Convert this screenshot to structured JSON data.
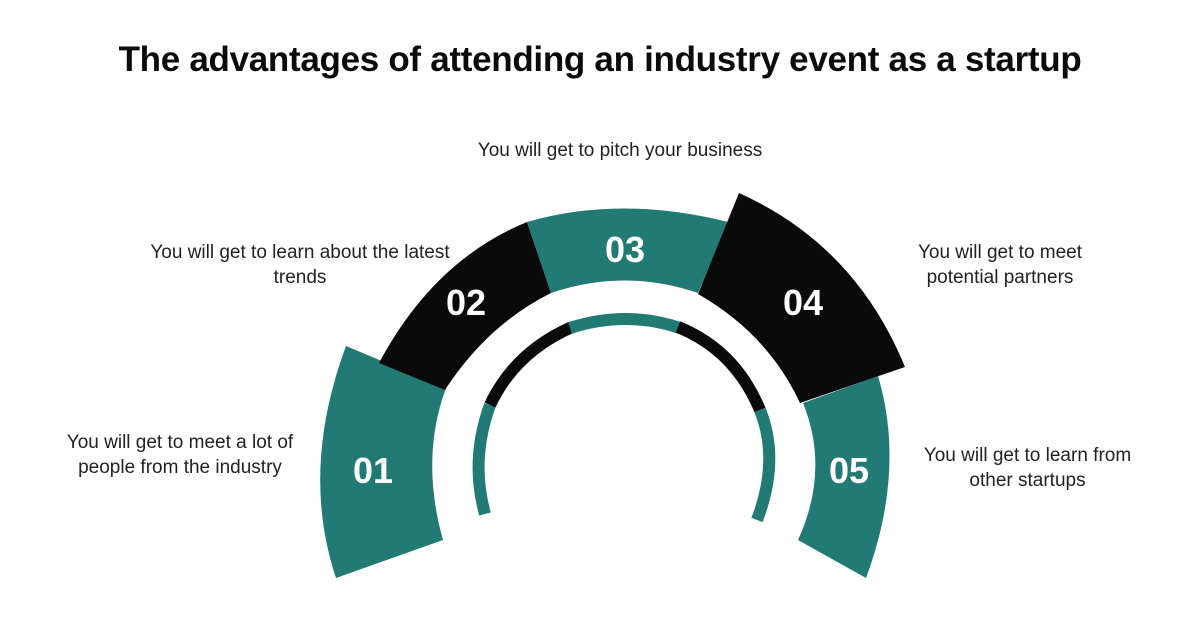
{
  "title": "The advantages of attending an industry event as a startup",
  "colors": {
    "teal": "#217a74",
    "black": "#0a0a0a",
    "background": "#ffffff"
  },
  "steps": [
    {
      "number": "01",
      "text": "You will get to meet a lot of people from the industry",
      "color": "teal"
    },
    {
      "number": "02",
      "text": "You will get to learn about the latest trends",
      "color": "black"
    },
    {
      "number": "03",
      "text": "You will get to pitch your business",
      "color": "teal"
    },
    {
      "number": "04",
      "text": "You will get to meet potential partners",
      "color": "black"
    },
    {
      "number": "05",
      "text": "You will get to learn from other startups",
      "color": "teal"
    }
  ]
}
